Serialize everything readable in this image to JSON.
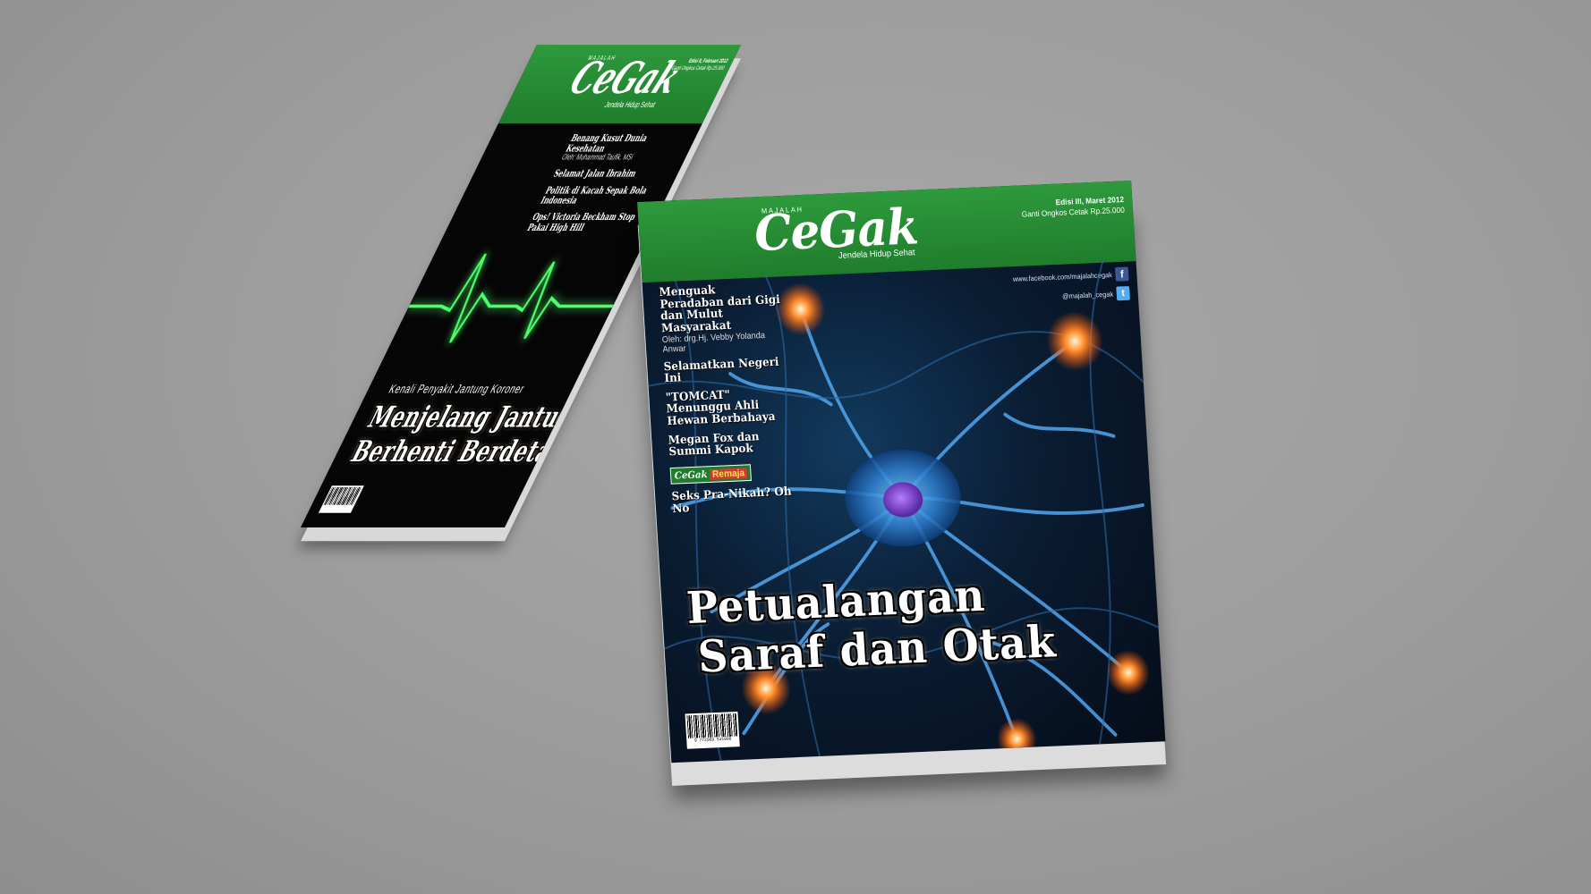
{
  "back": {
    "majalah": "MAJALAH",
    "logo": "CeGak",
    "tagline": "Jendela Hidup Sehat",
    "edition_line1": "Edisi II, Februari 2012",
    "edition_line2": "Ganti Ongkos Cetak Rp.25.000",
    "stories": [
      {
        "title": "Benang Kusut Dunia Kesehatan",
        "byline": "Oleh: Muhammad Taufik, MSi"
      },
      {
        "title": "Selamat Jalan Ibrahim",
        "byline": ""
      },
      {
        "title": "Politik di Kacah Sepak Bola Indonesia",
        "byline": ""
      },
      {
        "title": "Ops! Victoria Beckham Stop Pakai High Hill",
        "byline": ""
      }
    ],
    "kicker": "Kenali Penyakit Jantung Koroner",
    "headline_1": "Menjelang Jantung",
    "headline_2": "Berhenti Berdetak"
  },
  "front": {
    "majalah": "MAJALAH",
    "logo": "CeGak",
    "tagline": "Jendela Hidup Sehat",
    "edition_line1": "Edisi III, Maret 2012",
    "edition_line2": "Ganti Ongkos Cetak Rp.25.000",
    "facebook": "www.facebook.com/majalahcegak",
    "twitter": "@majalah_cegak",
    "stories": [
      {
        "title": "Menguak Peradaban dari Gigi dan Mulut Masyarakat",
        "byline": "Oleh: drg.Hj. Vebby Yolanda Anwar"
      },
      {
        "title": "Selamatkan Negeri Ini",
        "byline": ""
      },
      {
        "title": "\"TOMCAT\" Menunggu Ahli Hewan Berbahaya",
        "byline": ""
      },
      {
        "title": "Megan Fox dan Summi Kapok",
        "byline": ""
      }
    ],
    "badge_logo": "CeGak",
    "badge_text": "Remaja",
    "last_story": "Seks Pra-Nikah? Oh No",
    "headline_1": "Petualangan",
    "headline_2": "Saraf dan Otak",
    "barcode_number": "9 772089 541008"
  },
  "colors": {
    "band_green": "#2e9a3c",
    "ecg_green": "#4cff6a",
    "neuron_blue": "#4d9fe6"
  }
}
